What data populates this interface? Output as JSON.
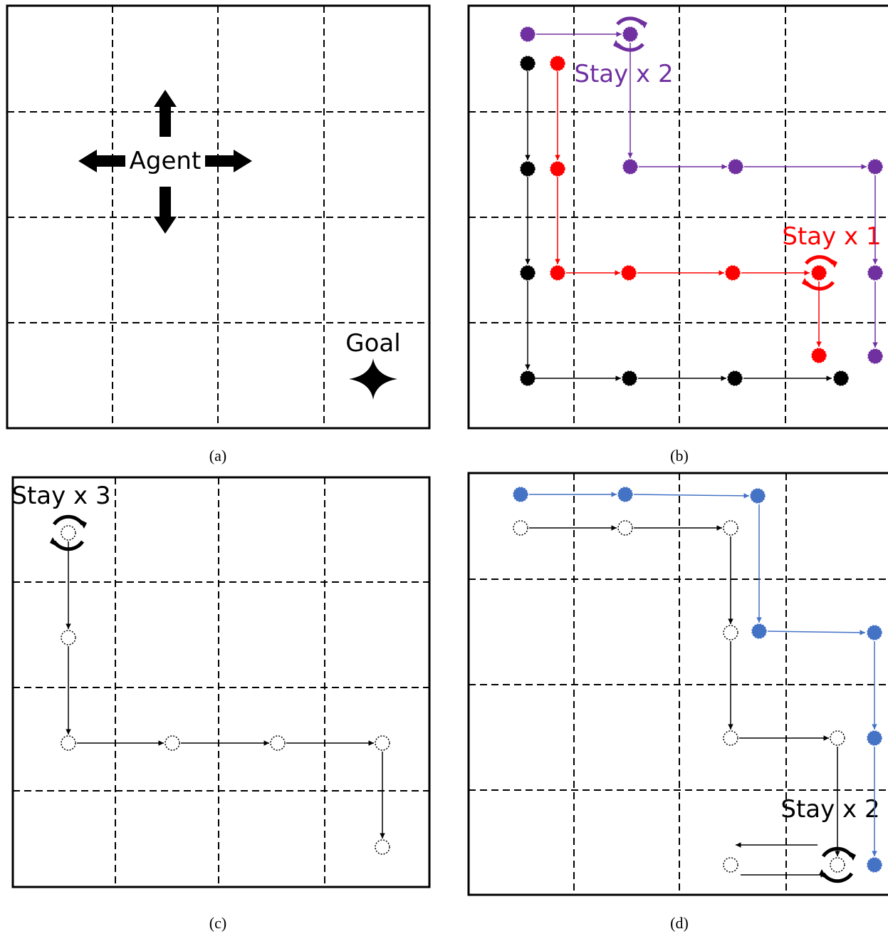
{
  "panels": [
    {
      "id": "a",
      "caption": "(a)",
      "agent_label": "Agent",
      "goal_label": "Goal",
      "action_arrows": [
        "up",
        "down",
        "left",
        "right"
      ]
    },
    {
      "id": "b",
      "caption": "(b)",
      "annotations": [
        "Stay x 2",
        "Stay x 1"
      ],
      "paths": [
        {
          "color": "#000000",
          "cells": [
            [
              0,
              0
            ],
            [
              0,
              1
            ],
            [
              0,
              2
            ],
            [
              0,
              3
            ],
            [
              1,
              3
            ],
            [
              2,
              3
            ],
            [
              3,
              3
            ]
          ]
        },
        {
          "color": "#ff0000",
          "cells": [
            [
              0,
              0
            ],
            [
              0,
              1
            ],
            [
              0,
              2
            ],
            [
              1,
              2
            ],
            [
              2,
              2
            ],
            [
              3,
              2
            ],
            [
              3,
              3
            ]
          ],
          "stay_cell": [
            3,
            2
          ],
          "stay_count": 1
        },
        {
          "color": "#7030a0",
          "cells": [
            [
              0,
              0
            ],
            [
              1,
              0
            ],
            [
              1,
              1
            ],
            [
              2,
              1
            ],
            [
              3,
              1
            ],
            [
              3,
              2
            ],
            [
              3,
              3
            ]
          ],
          "stay_cell": [
            1,
            0
          ],
          "stay_count": 2
        }
      ]
    },
    {
      "id": "c",
      "caption": "(c)",
      "annotations": [
        "Stay x 3"
      ],
      "paths": [
        {
          "color": "#000000",
          "cells": [
            [
              0,
              0
            ],
            [
              0,
              1
            ],
            [
              0,
              2
            ],
            [
              1,
              2
            ],
            [
              2,
              2
            ],
            [
              3,
              2
            ],
            [
              3,
              3
            ]
          ],
          "stay_cell": [
            0,
            0
          ],
          "stay_count": 3
        }
      ]
    },
    {
      "id": "d",
      "caption": "(d)",
      "annotations": [
        "Stay x 2"
      ],
      "paths": [
        {
          "color": "#000000",
          "cells": [
            [
              0,
              0
            ],
            [
              1,
              0
            ],
            [
              2,
              0
            ],
            [
              2,
              1
            ],
            [
              2,
              2
            ],
            [
              3,
              2
            ],
            [
              3,
              3
            ]
          ],
          "stay_cell": [
            3,
            3
          ],
          "stay_count": 2
        },
        {
          "color": "#4472c4",
          "cells": [
            [
              0,
              0
            ],
            [
              1,
              0
            ],
            [
              2,
              0
            ],
            [
              2,
              1
            ],
            [
              3,
              1
            ],
            [
              3,
              2
            ],
            [
              3,
              3
            ]
          ]
        }
      ]
    }
  ],
  "colors": {
    "black": "#000000",
    "red": "#ff0000",
    "purple": "#7030a0",
    "blue": "#4472c4"
  }
}
